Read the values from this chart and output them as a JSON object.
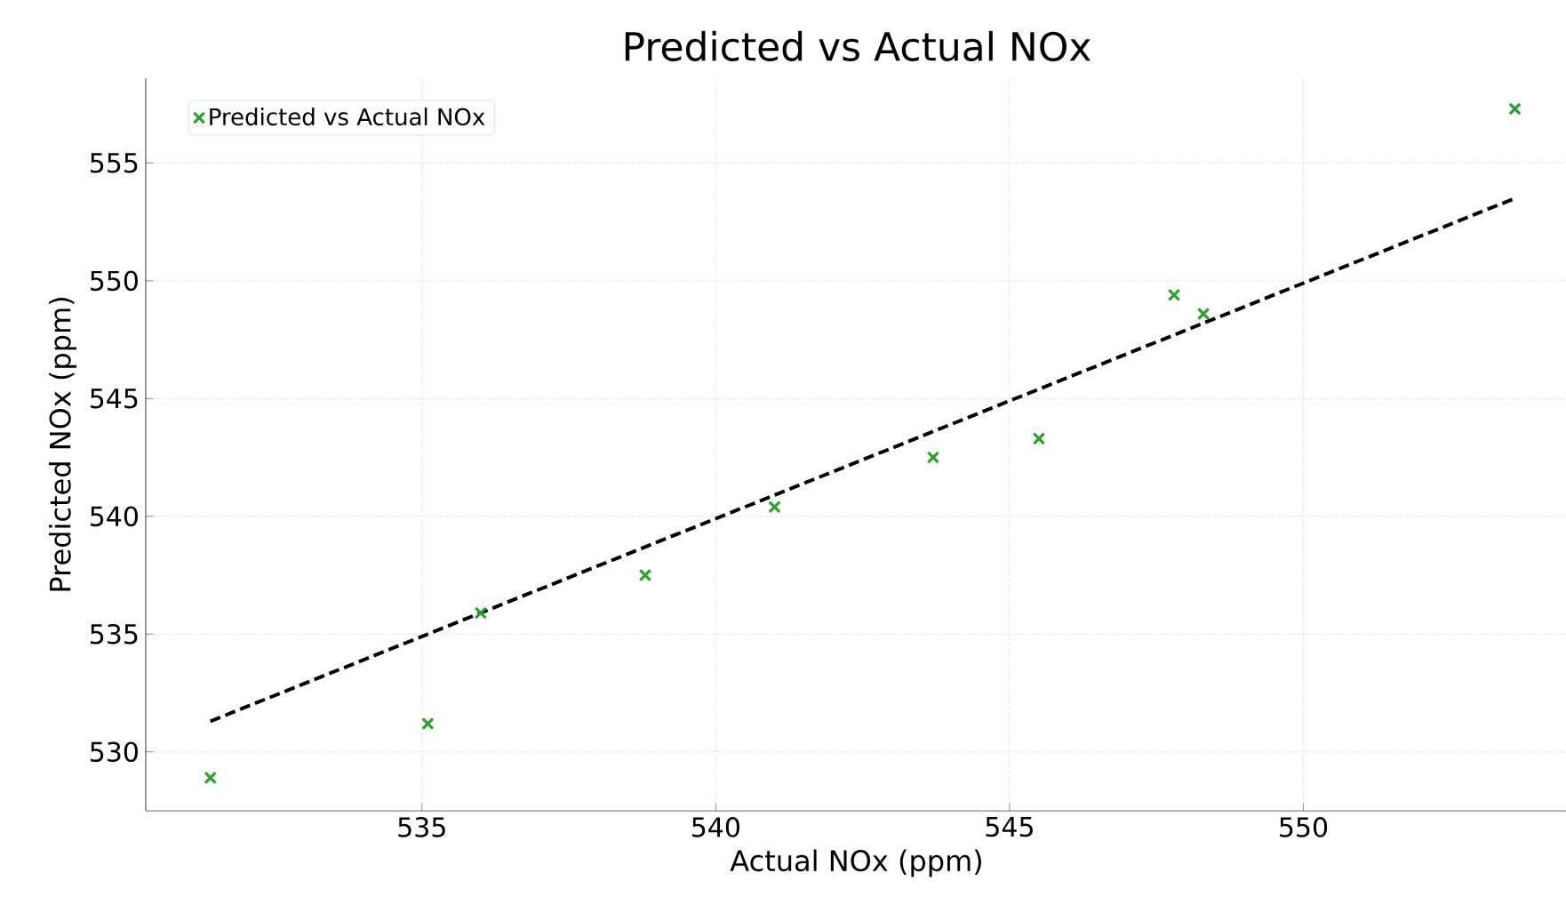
{
  "chart_data": {
    "type": "scatter",
    "title": "Predicted vs Actual NOx",
    "xlabel": "Actual NOx (ppm)",
    "ylabel": "Predicted NOx (ppm)",
    "xlim": [
      530.3,
      554.5
    ],
    "ylim": [
      527.5,
      558.6
    ],
    "xticks": [
      535,
      540,
      545,
      550
    ],
    "yticks": [
      530,
      535,
      540,
      545,
      550,
      555
    ],
    "grid": true,
    "legend": "top left",
    "marker": "cross",
    "series": [
      {
        "name": "Predicted vs Actual NOx",
        "color": "#2ca02c",
        "x": [
          531.4,
          535.1,
          536.0,
          538.8,
          541.0,
          543.7,
          545.5,
          547.8,
          548.3,
          553.6
        ],
        "values": [
          528.9,
          531.2,
          535.9,
          537.5,
          540.4,
          542.5,
          543.3,
          549.4,
          548.6,
          557.3
        ]
      },
      {
        "type": "line",
        "color": "#000000",
        "line_style": "dashed",
        "marker": "none",
        "x": [
          531.4,
          553.6
        ],
        "values": [
          531.3,
          553.5
        ]
      }
    ]
  }
}
